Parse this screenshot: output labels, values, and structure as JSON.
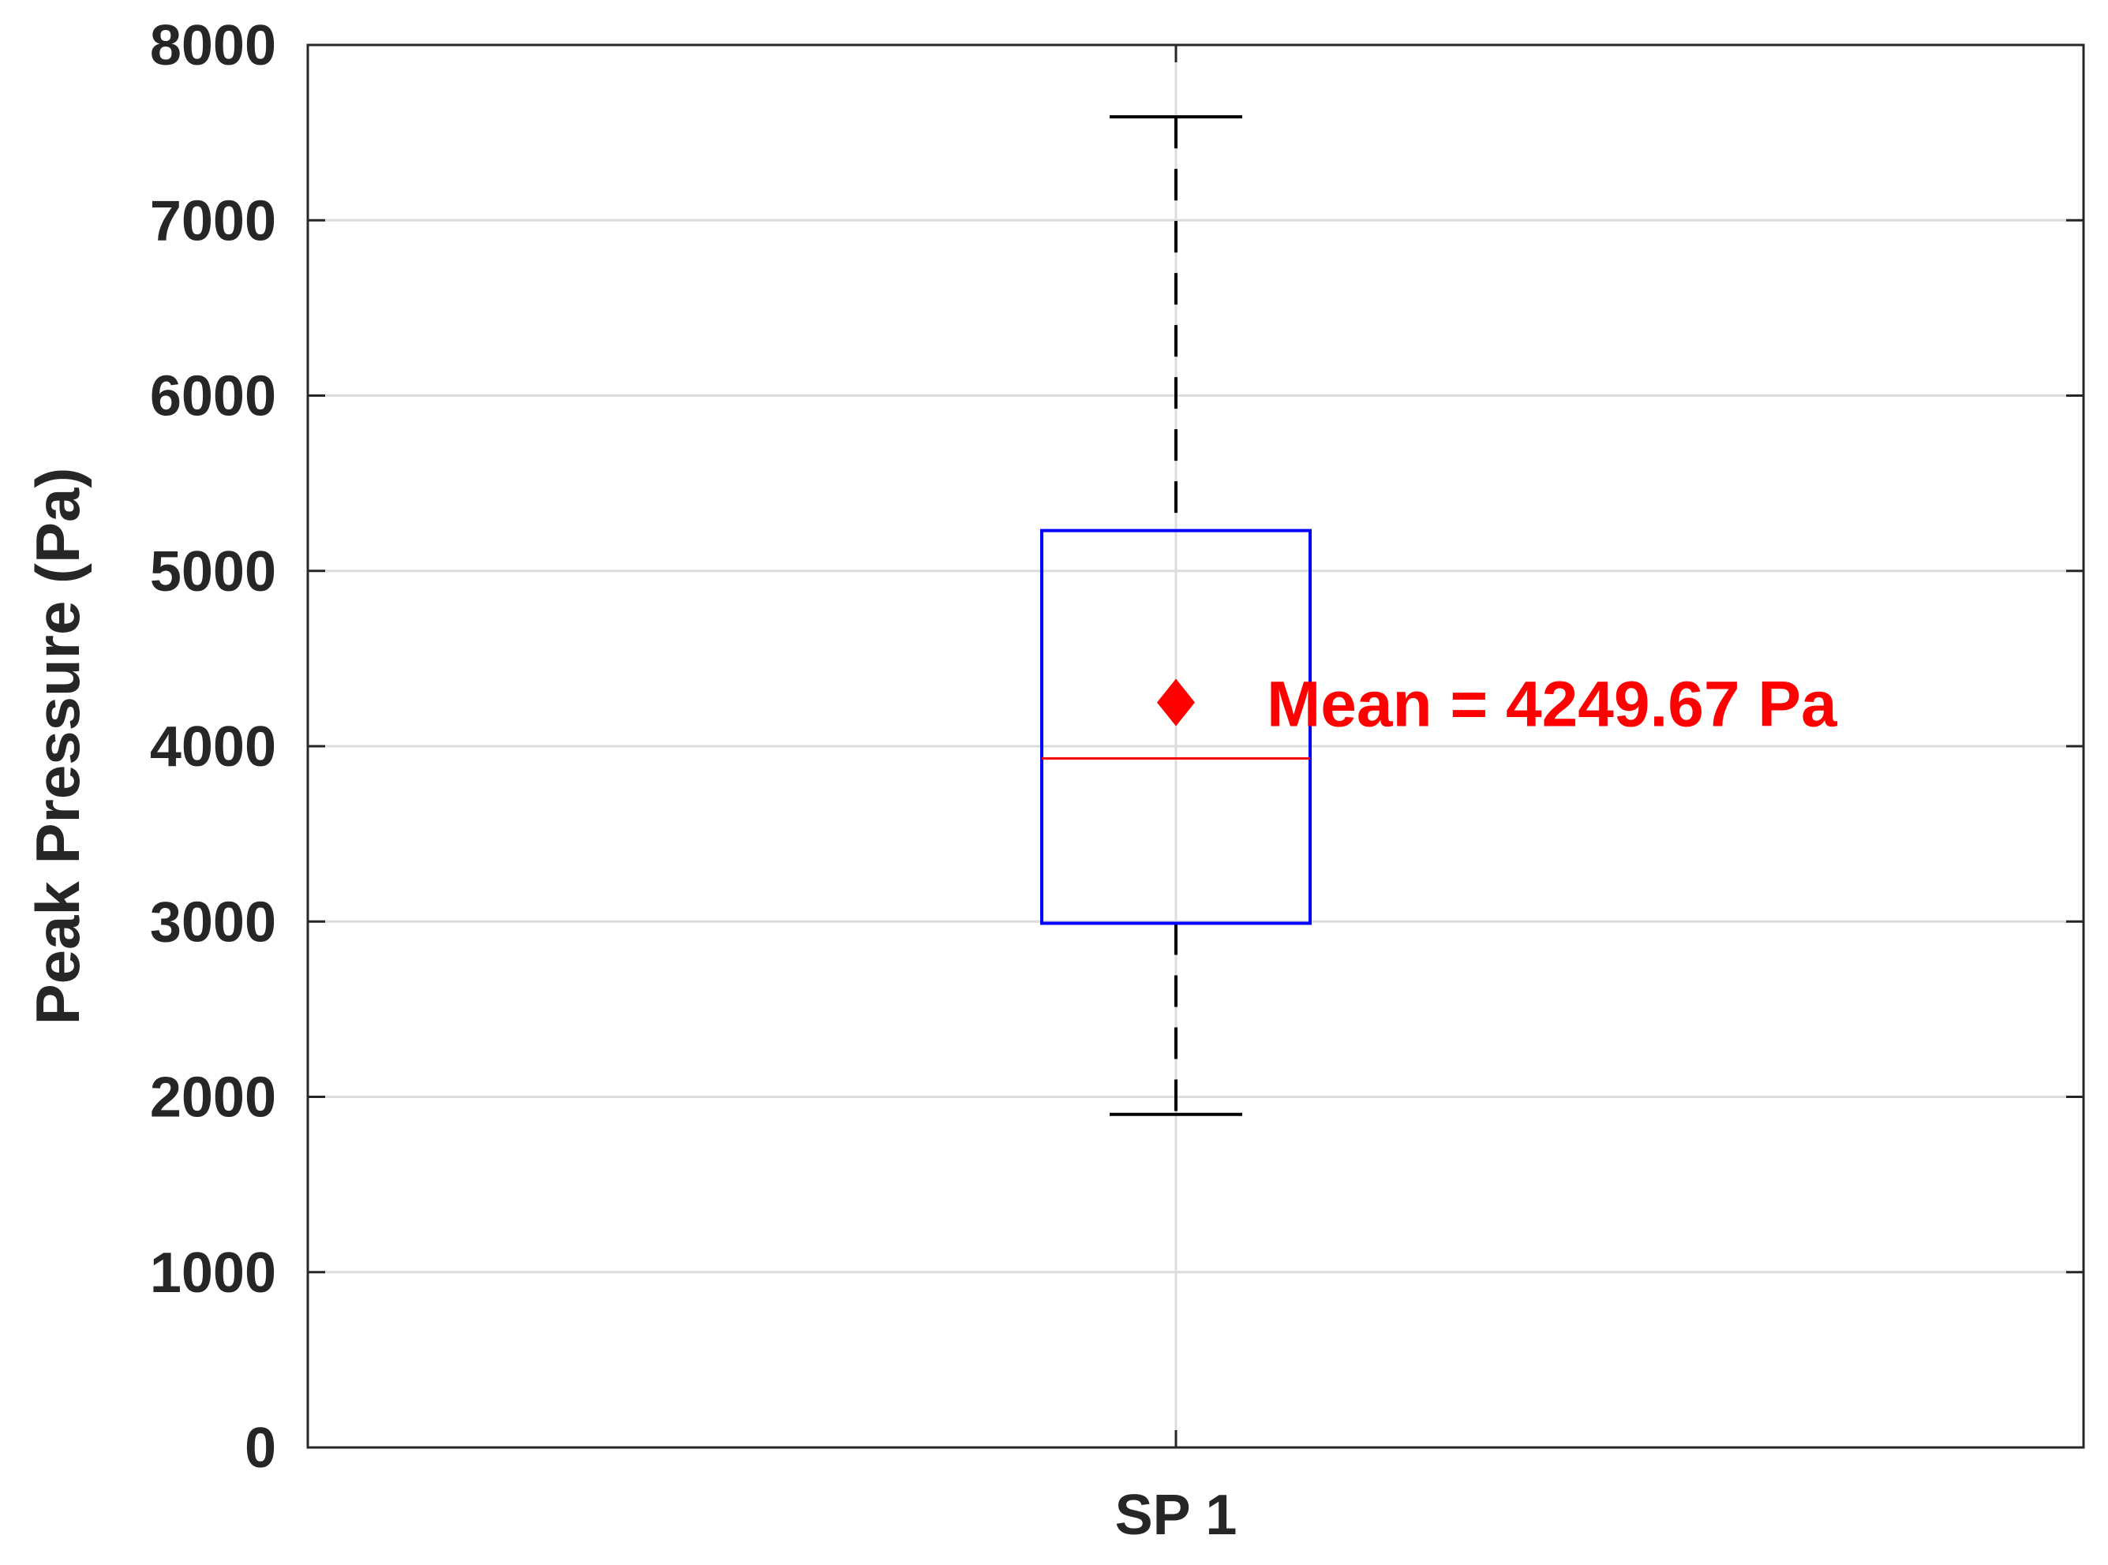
{
  "chart_data": {
    "type": "box",
    "ylabel": "Peak Pressure (Pa)",
    "ylim": [
      0,
      8000
    ],
    "yticks": [
      "0",
      "1000",
      "2000",
      "3000",
      "4000",
      "5000",
      "6000",
      "7000",
      "8000"
    ],
    "grid": true,
    "categories": [
      "SP 1"
    ],
    "boxes": [
      {
        "category": "SP 1",
        "whisker_low": 1900,
        "q1": 2990,
        "median": 3930,
        "q3": 5230,
        "whisker_high": 7590,
        "mean": 4249.67
      }
    ],
    "annotation": "Mean = 4249.67 Pa",
    "colors": {
      "box": "#0000ff",
      "median": "#ff0000",
      "mean_marker": "#ff0000",
      "whisker": "#000000",
      "grid": "#dcdcdc",
      "axes": "#262626"
    }
  }
}
